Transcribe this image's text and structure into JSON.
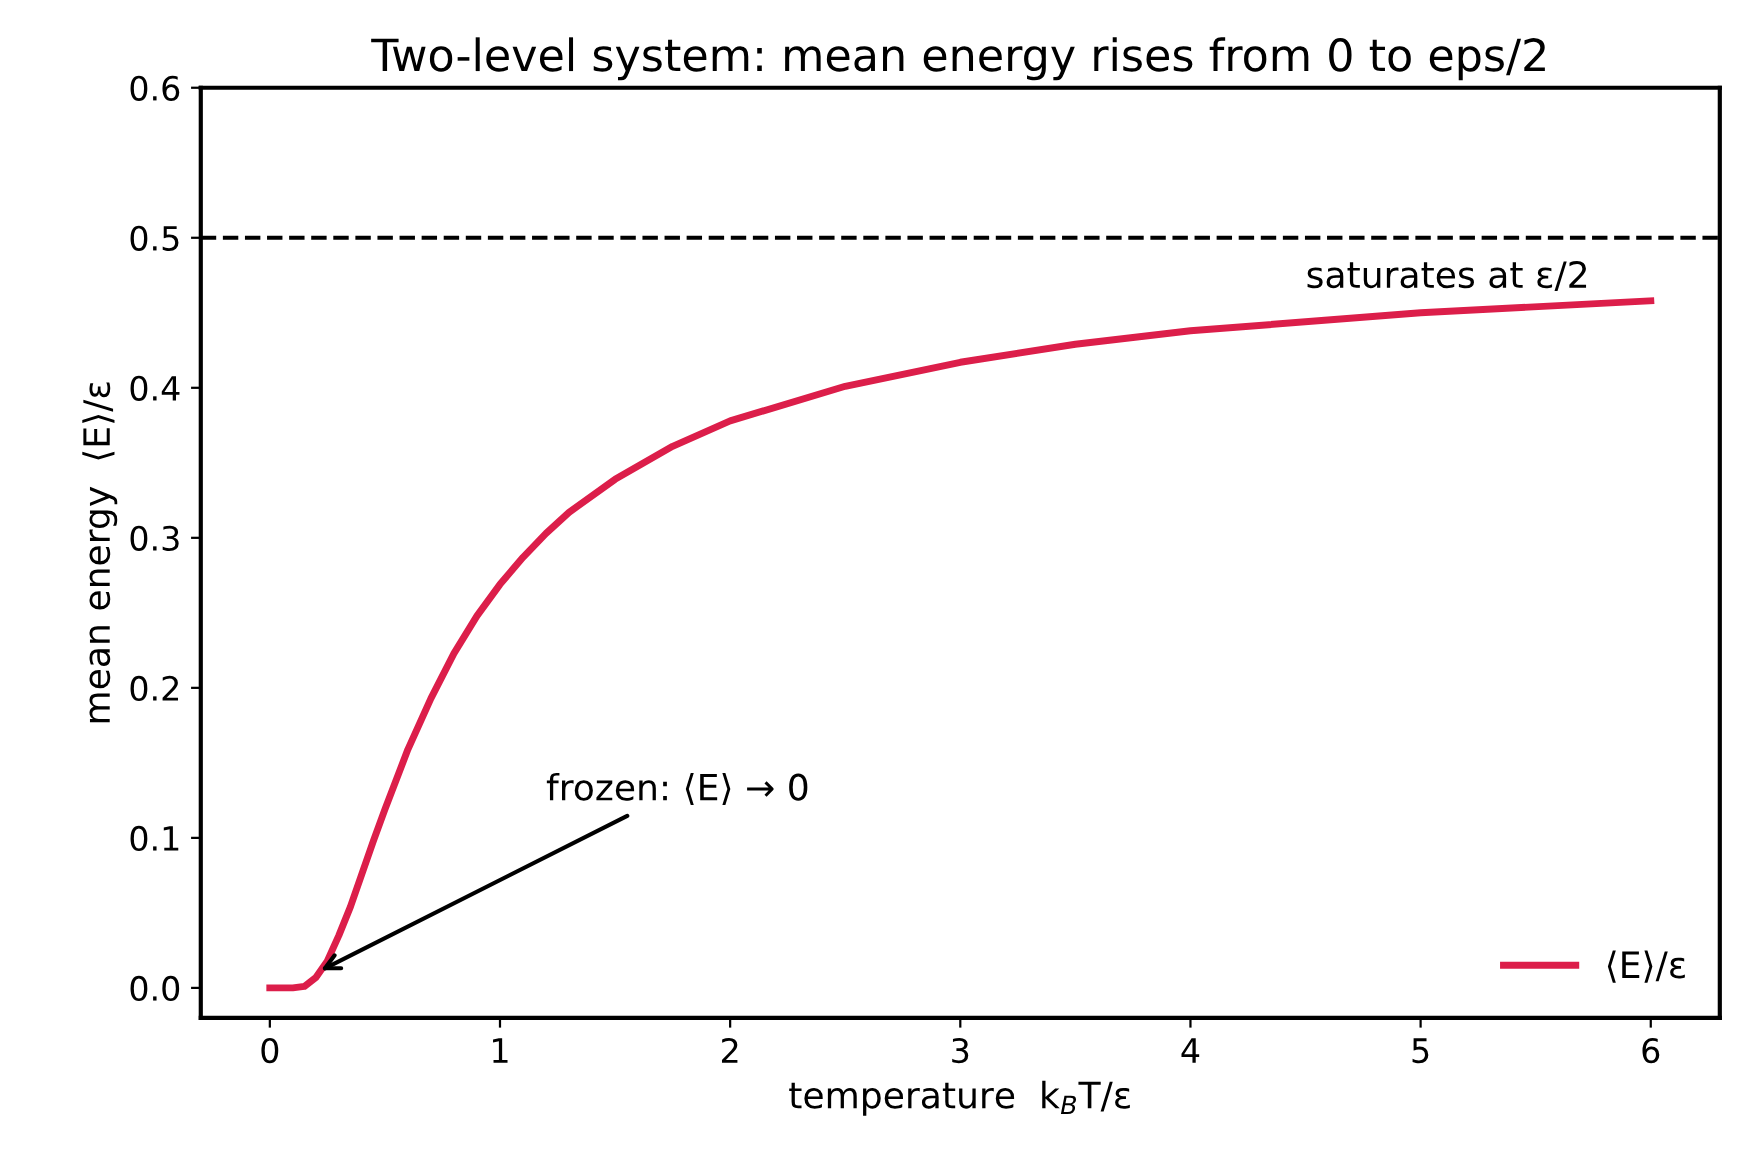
{
  "chart_data": {
    "type": "line",
    "title": "Two-level system: mean energy rises from 0 to eps/2",
    "xlabel": "temperature  k$_{B}$T/ε",
    "ylabel": "mean energy  ⟨E⟩/ε",
    "series": [
      {
        "name": "⟨E⟩/ε",
        "color": "#dc1e4a",
        "x": [
          0,
          0.1,
          0.15,
          0.2,
          0.25,
          0.3,
          0.35,
          0.4,
          0.45,
          0.5,
          0.6,
          0.7,
          0.8,
          0.9,
          1.0,
          1.1,
          1.2,
          1.3,
          1.5,
          1.75,
          2.0,
          2.5,
          3.0,
          3.5,
          4.0,
          5.0,
          6.0
        ],
        "values": [
          0,
          0.0,
          0.001,
          0.007,
          0.018,
          0.035,
          0.054,
          0.076,
          0.098,
          0.119,
          0.159,
          0.193,
          0.223,
          0.248,
          0.269,
          0.287,
          0.303,
          0.317,
          0.339,
          0.361,
          0.378,
          0.401,
          0.417,
          0.429,
          0.438,
          0.45,
          0.458
        ]
      }
    ],
    "xlim": [
      -0.3,
      6.3
    ],
    "ylim": [
      -0.02,
      0.6
    ],
    "xticks": [
      0,
      1,
      2,
      3,
      4,
      5,
      6
    ],
    "yticks": [
      {
        "value": 0,
        "label": "0.0"
      },
      0.1,
      0.2,
      0.3,
      0.4,
      0.5,
      0.6
    ],
    "ref_lines": [
      {
        "axis": "y",
        "value": 0.5,
        "color": "#000000",
        "line_style": "dashed"
      }
    ],
    "annotations": [
      {
        "text": "frozen: ⟨E⟩ → 0",
        "x": 0.2,
        "y": 0.01
      },
      {
        "text": "saturates at ε/2",
        "x": 6.0,
        "y": 0.458
      }
    ],
    "legend": "bottom right",
    "grid": false,
    "marker": "none",
    "line_style": "solid"
  }
}
